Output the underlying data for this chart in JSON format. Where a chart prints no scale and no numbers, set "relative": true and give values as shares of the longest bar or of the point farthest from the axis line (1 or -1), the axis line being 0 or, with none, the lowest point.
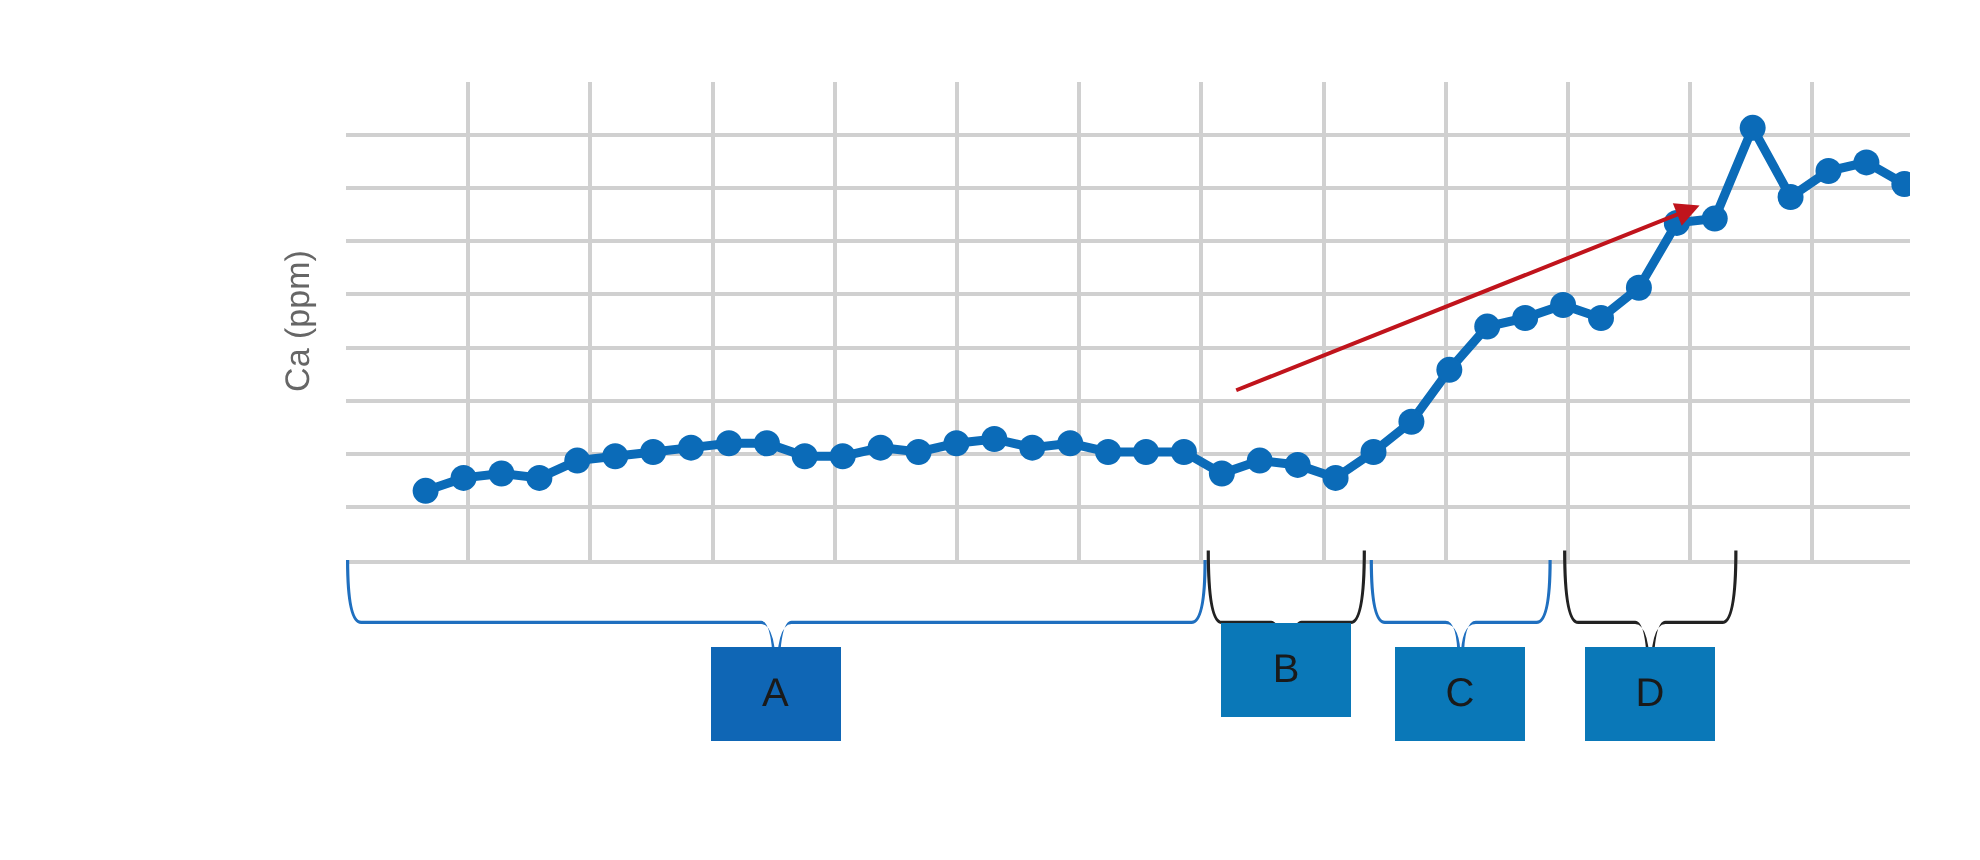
{
  "chart_data": {
    "type": "line",
    "ylabel": "Ca (ppm)",
    "relative": true,
    "grid": true,
    "marker": "circle",
    "line_style": "solid",
    "tick_labels": false,
    "categories": [
      null,
      null,
      null,
      null,
      null,
      null,
      null,
      null,
      null,
      null,
      null,
      null,
      null,
      null,
      null,
      null,
      null,
      null,
      null,
      null,
      null,
      null,
      null,
      null,
      null,
      null,
      null,
      null,
      null,
      null,
      null,
      null,
      null,
      null,
      null,
      null,
      null,
      null,
      null,
      null
    ],
    "series": [
      {
        "color": "#0b6bb8",
        "values": [
          0.16,
          0.19,
          0.2,
          0.19,
          0.23,
          0.24,
          0.25,
          0.26,
          0.27,
          0.27,
          0.24,
          0.24,
          0.26,
          0.25,
          0.27,
          0.28,
          0.26,
          0.27,
          0.25,
          0.25,
          0.25,
          0.2,
          0.23,
          0.22,
          0.19,
          0.25,
          0.32,
          0.44,
          0.54,
          0.56,
          0.59,
          0.56,
          0.63,
          0.78,
          0.79,
          1,
          0.84,
          0.9,
          0.92,
          0.87
        ]
      }
    ],
    "annotations": [
      "A",
      "B",
      "C",
      "D"
    ]
  }
}
